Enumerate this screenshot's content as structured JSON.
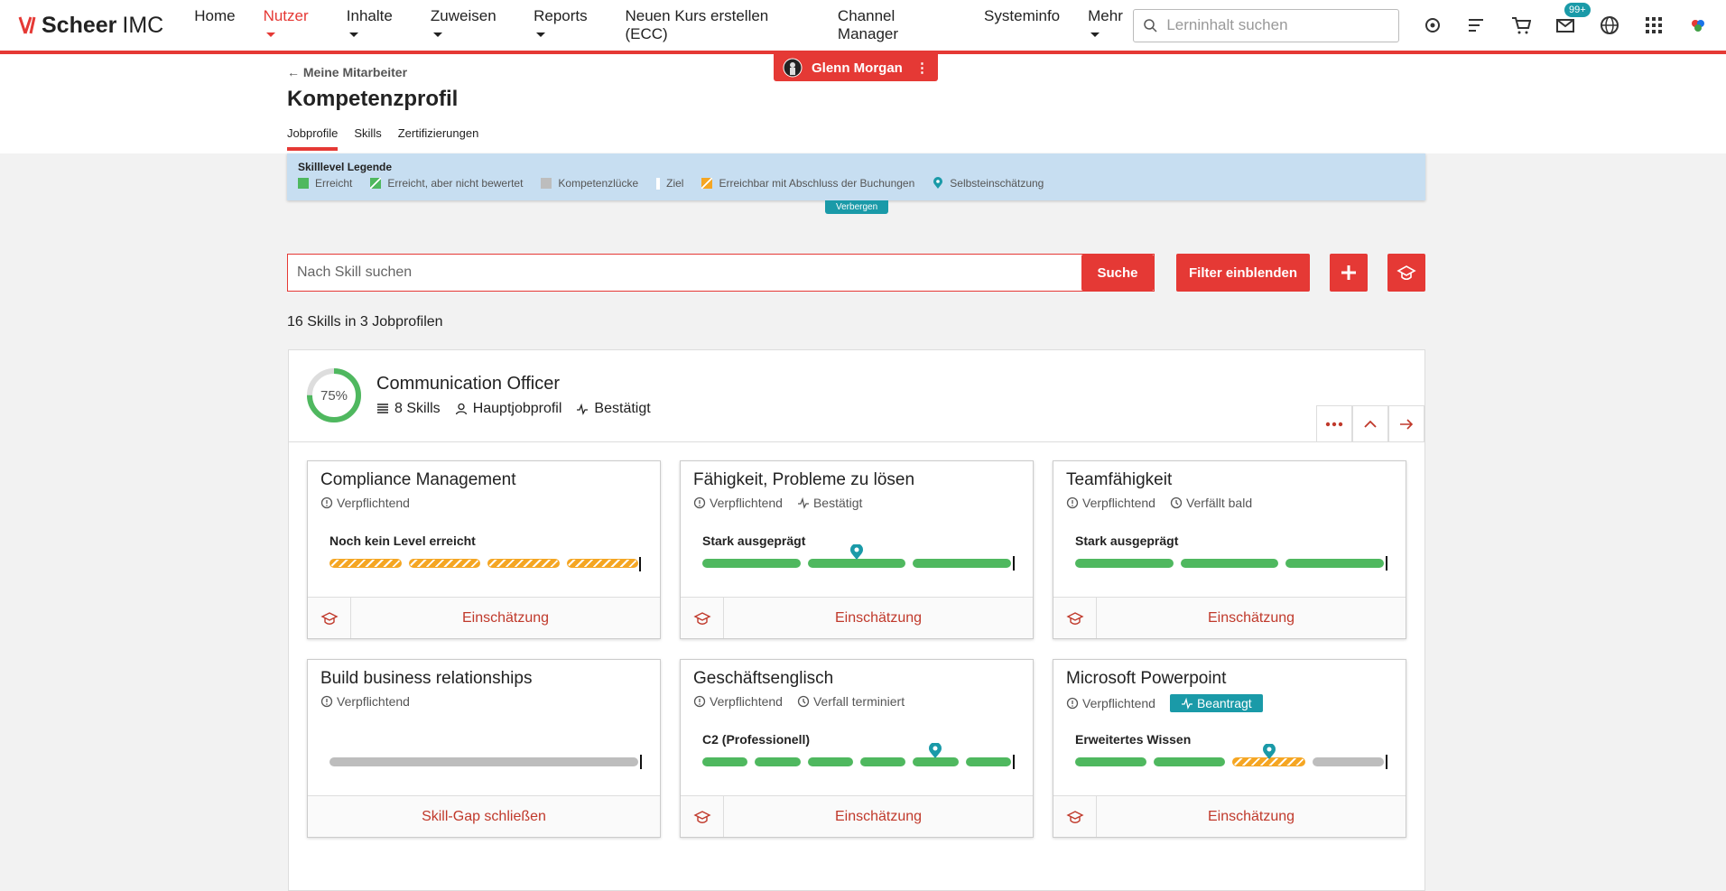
{
  "nav": {
    "brand": "Scheer",
    "brand_suffix": "IMC",
    "items": [
      {
        "label": "Home"
      },
      {
        "label": "Nutzer",
        "active": true,
        "dropdown": true
      },
      {
        "label": "Inhalte",
        "dropdown": true
      },
      {
        "label": "Zuweisen",
        "dropdown": true
      },
      {
        "label": "Reports",
        "dropdown": true
      },
      {
        "label": "Neuen Kurs erstellen (ECC)"
      },
      {
        "label": "Channel Manager"
      },
      {
        "label": "Systeminfo"
      },
      {
        "label": "Mehr",
        "dropdown": true
      }
    ],
    "search_placeholder": "Lerninhalt suchen",
    "mail_badge": "99+"
  },
  "user": {
    "name": "Glenn Morgan"
  },
  "header": {
    "back": "Meine Mitarbeiter",
    "title": "Kompetenzprofil",
    "tabs": [
      "Jobprofile",
      "Skills",
      "Zertifizierungen"
    ],
    "active_tab": 0
  },
  "legend": {
    "title": "Skilllevel Legende",
    "items": [
      {
        "label": "Erreicht",
        "kind": "achieved"
      },
      {
        "label": "Erreicht, aber nicht bewertet",
        "kind": "achieved-unrated"
      },
      {
        "label": "Kompetenzlücke",
        "kind": "gap"
      },
      {
        "label": "Ziel",
        "kind": "goal"
      },
      {
        "label": "Erreichbar mit Abschluss der Buchungen",
        "kind": "reachable"
      },
      {
        "label": "Selbsteinschätzung",
        "kind": "self"
      }
    ],
    "toggle": "Verbergen"
  },
  "search": {
    "placeholder": "Nach Skill suchen",
    "button": "Suche",
    "filter": "Filter einblenden"
  },
  "summary": "16 Skills in 3 Jobprofilen",
  "profile": {
    "progress": {
      "value": 75,
      "label": "75%"
    },
    "name": "Communication Officer",
    "meta": [
      "8 Skills",
      "Hauptjobprofil",
      "Bestätigt"
    ],
    "skills": [
      {
        "title": "Compliance Management",
        "tags": [
          {
            "text": "Verpflichtend",
            "icon": "info"
          }
        ],
        "level": "Noch kein Level erreicht",
        "segments": [
          "reachable",
          "reachable",
          "reachable",
          "reachable"
        ],
        "action": "Einschätzung",
        "action_icon": true
      },
      {
        "title": "Fähigkeit, Probleme zu lösen",
        "tags": [
          {
            "text": "Verpflichtend",
            "icon": "info"
          },
          {
            "text": "Bestätigt",
            "icon": "pulse"
          }
        ],
        "level": "Stark ausgeprägt",
        "segments": [
          "achieved",
          "achieved",
          "achieved"
        ],
        "self_assessment": 1,
        "action": "Einschätzung",
        "action_icon": true
      },
      {
        "title": "Teamfähigkeit",
        "tags": [
          {
            "text": "Verpflichtend",
            "icon": "info"
          },
          {
            "text": "Verfällt bald",
            "icon": "clock"
          }
        ],
        "level": "Stark ausgeprägt",
        "segments": [
          "achieved",
          "achieved",
          "achieved"
        ],
        "action": "Einschätzung",
        "action_icon": true
      },
      {
        "title": "Build business relationships",
        "tags": [
          {
            "text": "Verpflichtend",
            "icon": "info"
          }
        ],
        "segments": [
          "gap"
        ],
        "action": "Skill-Gap schließen",
        "action_icon": false
      },
      {
        "title": "Geschäftsenglisch",
        "tags": [
          {
            "text": "Verpflichtend",
            "icon": "info"
          },
          {
            "text": "Verfall terminiert",
            "icon": "clock"
          }
        ],
        "level": "C2 (Professionell)",
        "segments": [
          "achieved",
          "achieved",
          "achieved",
          "achieved",
          "achieved",
          "achieved"
        ],
        "self_assessment": 4,
        "action": "Einschätzung",
        "action_icon": true
      },
      {
        "title": "Microsoft Powerpoint",
        "tags": [
          {
            "text": "Verpflichtend",
            "icon": "info"
          },
          {
            "text": "Beantragt",
            "icon": "pulse",
            "badge": true
          }
        ],
        "level": "Erweitertes Wissen",
        "segments": [
          "achieved",
          "achieved",
          "reachable",
          "gap"
        ],
        "self_assessment": 2,
        "action": "Einschätzung",
        "action_icon": true
      }
    ]
  }
}
